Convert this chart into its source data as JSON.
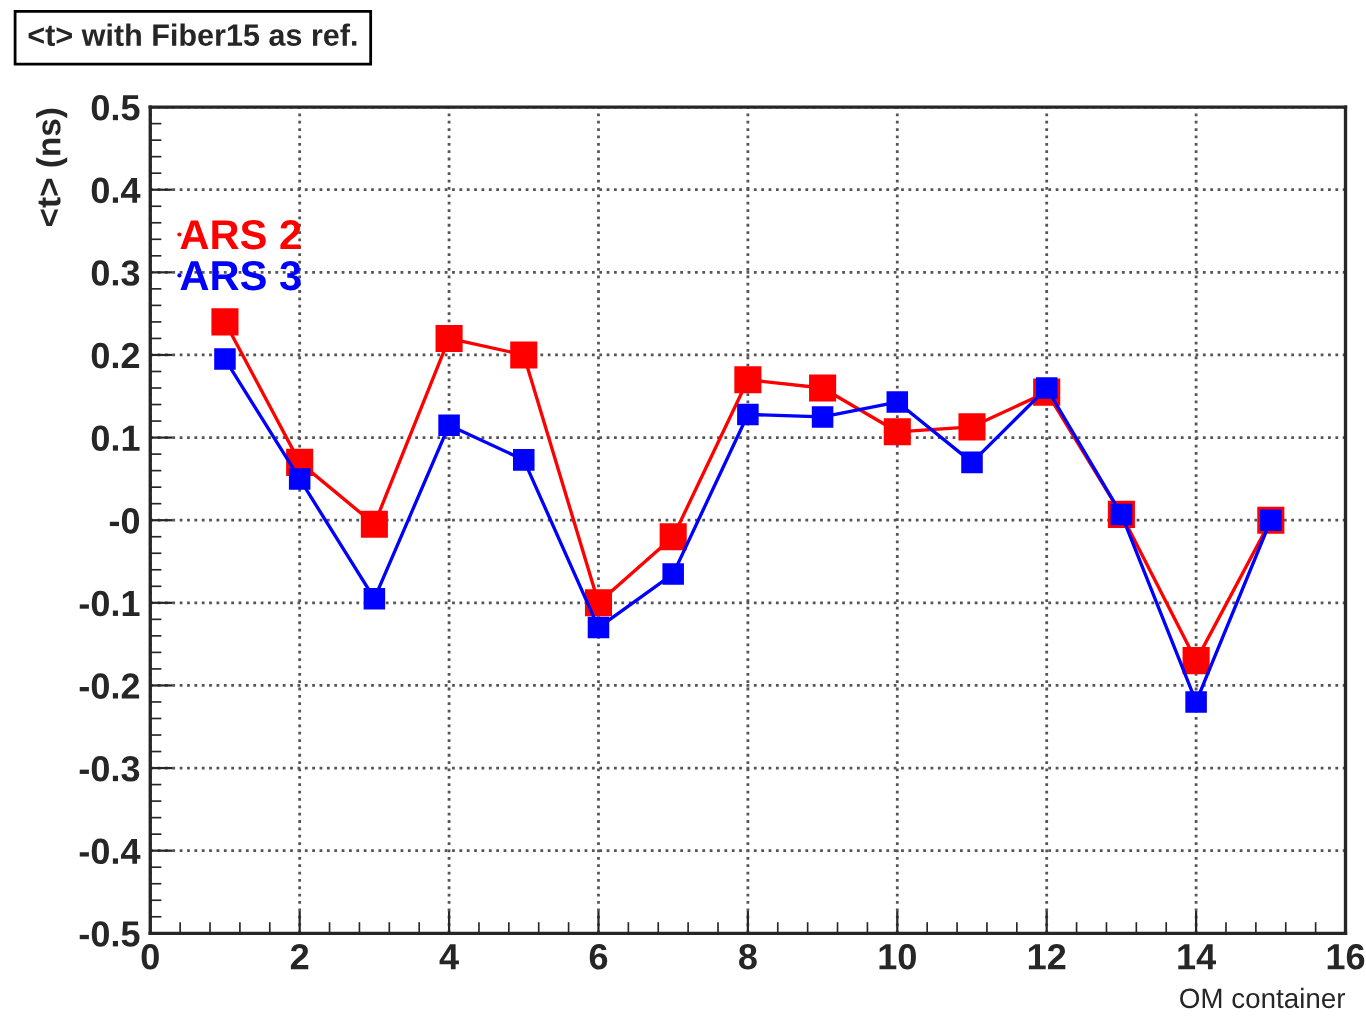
{
  "chart_data": {
    "type": "line",
    "title": "<t> with Fiber15 as ref.",
    "xlabel": "OM container",
    "ylabel": "<t> (ns)",
    "x": [
      1,
      2,
      3,
      4,
      5,
      6,
      7,
      8,
      9,
      10,
      11,
      12,
      13,
      14,
      15
    ],
    "series": [
      {
        "name": "ARS 2",
        "color": "#ff0000",
        "values": [
          0.24,
          0.07,
          -0.005,
          0.22,
          0.2,
          -0.1,
          -0.02,
          0.17,
          0.16,
          0.107,
          0.113,
          0.155,
          0.007,
          -0.17,
          0.0
        ]
      },
      {
        "name": "ARS 3",
        "color": "#0000ff",
        "values": [
          0.195,
          0.05,
          -0.095,
          0.115,
          0.073,
          -0.13,
          -0.065,
          0.128,
          0.125,
          0.143,
          0.07,
          0.16,
          0.007,
          -0.22,
          0.0
        ]
      }
    ],
    "xlim": [
      0,
      16
    ],
    "xticks": [
      0,
      2,
      4,
      6,
      8,
      10,
      12,
      14,
      16
    ],
    "ylim": [
      -0.5,
      0.5
    ],
    "yticks": [
      -0.5,
      -0.4,
      -0.3,
      -0.2,
      -0.1,
      {
        "value": 0,
        "label": "-0"
      },
      0.1,
      0.2,
      0.3,
      0.4,
      0.5
    ],
    "grid": true,
    "legend": "top left",
    "marker": "square",
    "line_style": "solid"
  }
}
